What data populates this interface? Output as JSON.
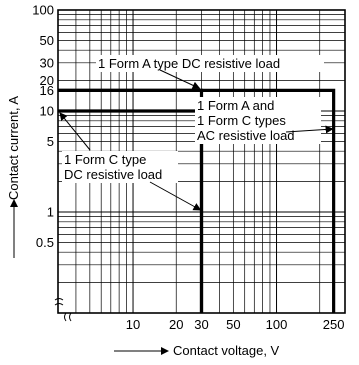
{
  "chart_data": {
    "type": "line",
    "title": "",
    "xlabel": "Contact voltage, V",
    "ylabel": "Contact current, A",
    "x_scale": "log",
    "y_scale": "log",
    "xlim": [
      3,
      300
    ],
    "ylim": [
      0.1,
      100
    ],
    "grid": true,
    "x_ticks": [
      {
        "value": 10,
        "label": "10"
      },
      {
        "value": 20,
        "label": "20"
      },
      {
        "value": 30,
        "label": "30"
      },
      {
        "value": 50,
        "label": "50"
      },
      {
        "value": 100,
        "label": "100"
      },
      {
        "value": 250,
        "label": "250"
      }
    ],
    "y_ticks": [
      {
        "value": 100,
        "label": "100"
      },
      {
        "value": 50,
        "label": "50"
      },
      {
        "value": 30,
        "label": "30"
      },
      {
        "value": 20,
        "label": "20"
      },
      {
        "value": 16,
        "label": "16"
      },
      {
        "value": 10,
        "label": "10"
      },
      {
        "value": 5,
        "label": "5"
      },
      {
        "value": 1,
        "label": "1"
      },
      {
        "value": 0.5,
        "label": "0.5"
      }
    ],
    "series": [
      {
        "name": "1 Form A type DC resistive load",
        "points": [
          [
            3,
            16
          ],
          [
            30,
            16
          ],
          [
            30,
            0.1
          ]
        ]
      },
      {
        "name": "1 Form C type DC resistive load",
        "points": [
          [
            3,
            10
          ],
          [
            30,
            10
          ],
          [
            30,
            0.1
          ]
        ]
      },
      {
        "name": "1 Form A and 1 Form C types AC resistive load",
        "points": [
          [
            3,
            16
          ],
          [
            250,
            16
          ],
          [
            250,
            0.1
          ]
        ]
      }
    ],
    "annotations": [
      {
        "lines": [
          "1 Form A type DC resistive load"
        ],
        "arrow_to": [
          30,
          16
        ]
      },
      {
        "lines": [
          "1 Form A and",
          "1 Form C types",
          "AC resistive load"
        ],
        "arrow_to": [
          250,
          10
        ]
      },
      {
        "lines": [
          "1 Form C type",
          "DC resistive load"
        ],
        "arrow_to_1": [
          3,
          10
        ],
        "arrow_to_2": [
          30,
          1
        ]
      }
    ]
  }
}
